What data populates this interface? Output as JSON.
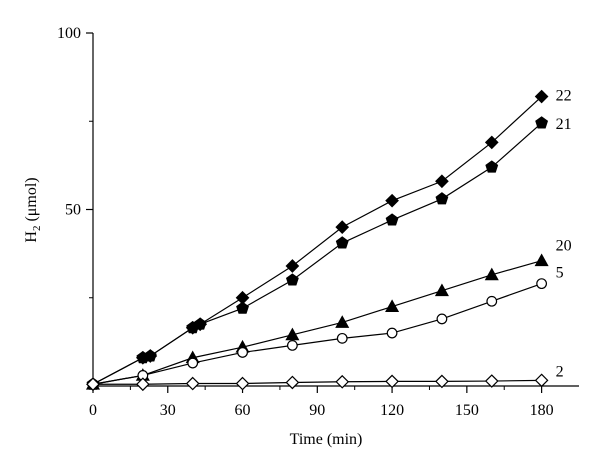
{
  "chart_data": {
    "type": "line",
    "xlabel": "Time (min)",
    "ylabel_main": "H",
    "ylabel_sub": "2",
    "ylabel_unit": " (μmol)",
    "xlim": [
      0,
      195
    ],
    "ylim": [
      0,
      100
    ],
    "xticks": [
      0,
      30,
      60,
      90,
      120,
      150,
      180
    ],
    "yticks": [
      50,
      100
    ],
    "series": [
      {
        "name": "22",
        "marker": "diamond-filled",
        "x": [
          0,
          20,
          23,
          40,
          43,
          60,
          80,
          100,
          120,
          140,
          160,
          180
        ],
        "y": [
          0.5,
          8,
          8.5,
          16.5,
          17.5,
          25,
          34,
          45,
          52.5,
          58,
          69,
          82
        ]
      },
      {
        "name": "21",
        "marker": "pentagon-filled",
        "x": [
          0,
          20,
          23,
          40,
          43,
          60,
          80,
          100,
          120,
          140,
          160,
          180
        ],
        "y": [
          0.5,
          8,
          8.5,
          16.5,
          17.5,
          22,
          30,
          40.5,
          47,
          53,
          62,
          74.5
        ]
      },
      {
        "name": "20",
        "marker": "triangle-filled",
        "x": [
          0,
          20,
          40,
          60,
          80,
          100,
          120,
          140,
          160,
          180
        ],
        "y": [
          0.5,
          3,
          8,
          11,
          14.5,
          18,
          22.5,
          27,
          31.5,
          35.5
        ]
      },
      {
        "name": "5",
        "marker": "circle-open",
        "x": [
          0,
          20,
          40,
          60,
          80,
          100,
          120,
          140,
          160,
          180
        ],
        "y": [
          0.5,
          3,
          6.5,
          9.5,
          11.5,
          13.5,
          15,
          19,
          24,
          29
        ]
      },
      {
        "name": "2",
        "marker": "diamond-open",
        "x": [
          0,
          20,
          40,
          60,
          80,
          100,
          120,
          140,
          160,
          180
        ],
        "y": [
          0.5,
          0.5,
          0.7,
          0.7,
          1.0,
          1.2,
          1.3,
          1.3,
          1.4,
          1.6
        ]
      }
    ]
  }
}
